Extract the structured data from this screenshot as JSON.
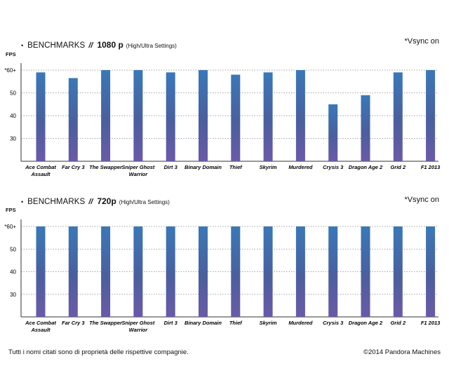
{
  "vsync_note": "*Vsync on",
  "footer": {
    "left": "Tutti i nomi citati sono di proprietà delle rispettive compagnie.",
    "right": "©2014 Pandora Machines"
  },
  "colors": {
    "bar_top": "#3a78b8",
    "bar_bottom": "#6a5aa8",
    "grid": "#888888",
    "axis": "#333333"
  },
  "chart_data": [
    {
      "type": "bar",
      "title": "BENCHMARKS",
      "resolution": "1080 p",
      "settings": "(High/Ultra Settings)",
      "ylabel": "FPS",
      "ylim": [
        20,
        60
      ],
      "yticks": [
        30,
        40,
        50,
        60
      ],
      "ytick_labels": [
        "30",
        "40",
        "50",
        "*60+"
      ],
      "grid": true,
      "categories": [
        "Ace Combat Assault",
        "Far Cry 3",
        "The Swapper",
        "Sniper Ghost Warrior",
        "Dirt 3",
        "Binary Domain",
        "Thief",
        "Skyrim",
        "Murdered",
        "Crysis 3",
        "Dragon Age 2",
        "Grid 2",
        "F1 2013"
      ],
      "category_lines": [
        [
          "Ace Combat",
          "Assault"
        ],
        [
          "Far Cry 3"
        ],
        [
          "The Swapper"
        ],
        [
          "Sniper Ghost",
          "Warrior"
        ],
        [
          "Dirt 3"
        ],
        [
          "Binary Domain"
        ],
        [
          "Thief"
        ],
        [
          "Skyrim"
        ],
        [
          "Murdered"
        ],
        [
          "Crysis 3"
        ],
        [
          "Dragon Age 2"
        ],
        [
          "Grid 2"
        ],
        [
          "F1 2013"
        ]
      ],
      "values": [
        59,
        56.5,
        60,
        60,
        59,
        60,
        58,
        59,
        60,
        45,
        49,
        59,
        60
      ]
    },
    {
      "type": "bar",
      "title": "BENCHMARKS",
      "resolution": "720p",
      "settings": "(High/Ultra Settings)",
      "ylabel": "FPS",
      "ylim": [
        20,
        60
      ],
      "yticks": [
        30,
        40,
        50,
        60
      ],
      "ytick_labels": [
        "30",
        "40",
        "50",
        "*60+"
      ],
      "grid": true,
      "categories": [
        "Ace Combat Assault",
        "Far Cry 3",
        "The Swapper",
        "Sniper Ghost Warrior",
        "Dirt 3",
        "Binary Domain",
        "Thief",
        "Skyrim",
        "Murdered",
        "Crysis 3",
        "Dragon Age 2",
        "Grid 2",
        "F1 2013"
      ],
      "category_lines": [
        [
          "Ace Combat",
          "Assault"
        ],
        [
          "Far Cry 3"
        ],
        [
          "The Swapper"
        ],
        [
          "Sniper Ghost",
          "Warrior"
        ],
        [
          "Dirt 3"
        ],
        [
          "Binary Domain"
        ],
        [
          "Thief"
        ],
        [
          "Skyrim"
        ],
        [
          "Murdered"
        ],
        [
          "Crysis 3"
        ],
        [
          "Dragon Age 2"
        ],
        [
          "Grid 2"
        ],
        [
          "F1 2013"
        ]
      ],
      "values": [
        60,
        60,
        60,
        60,
        60,
        60,
        60,
        60,
        60,
        60,
        60,
        60,
        60
      ]
    }
  ]
}
